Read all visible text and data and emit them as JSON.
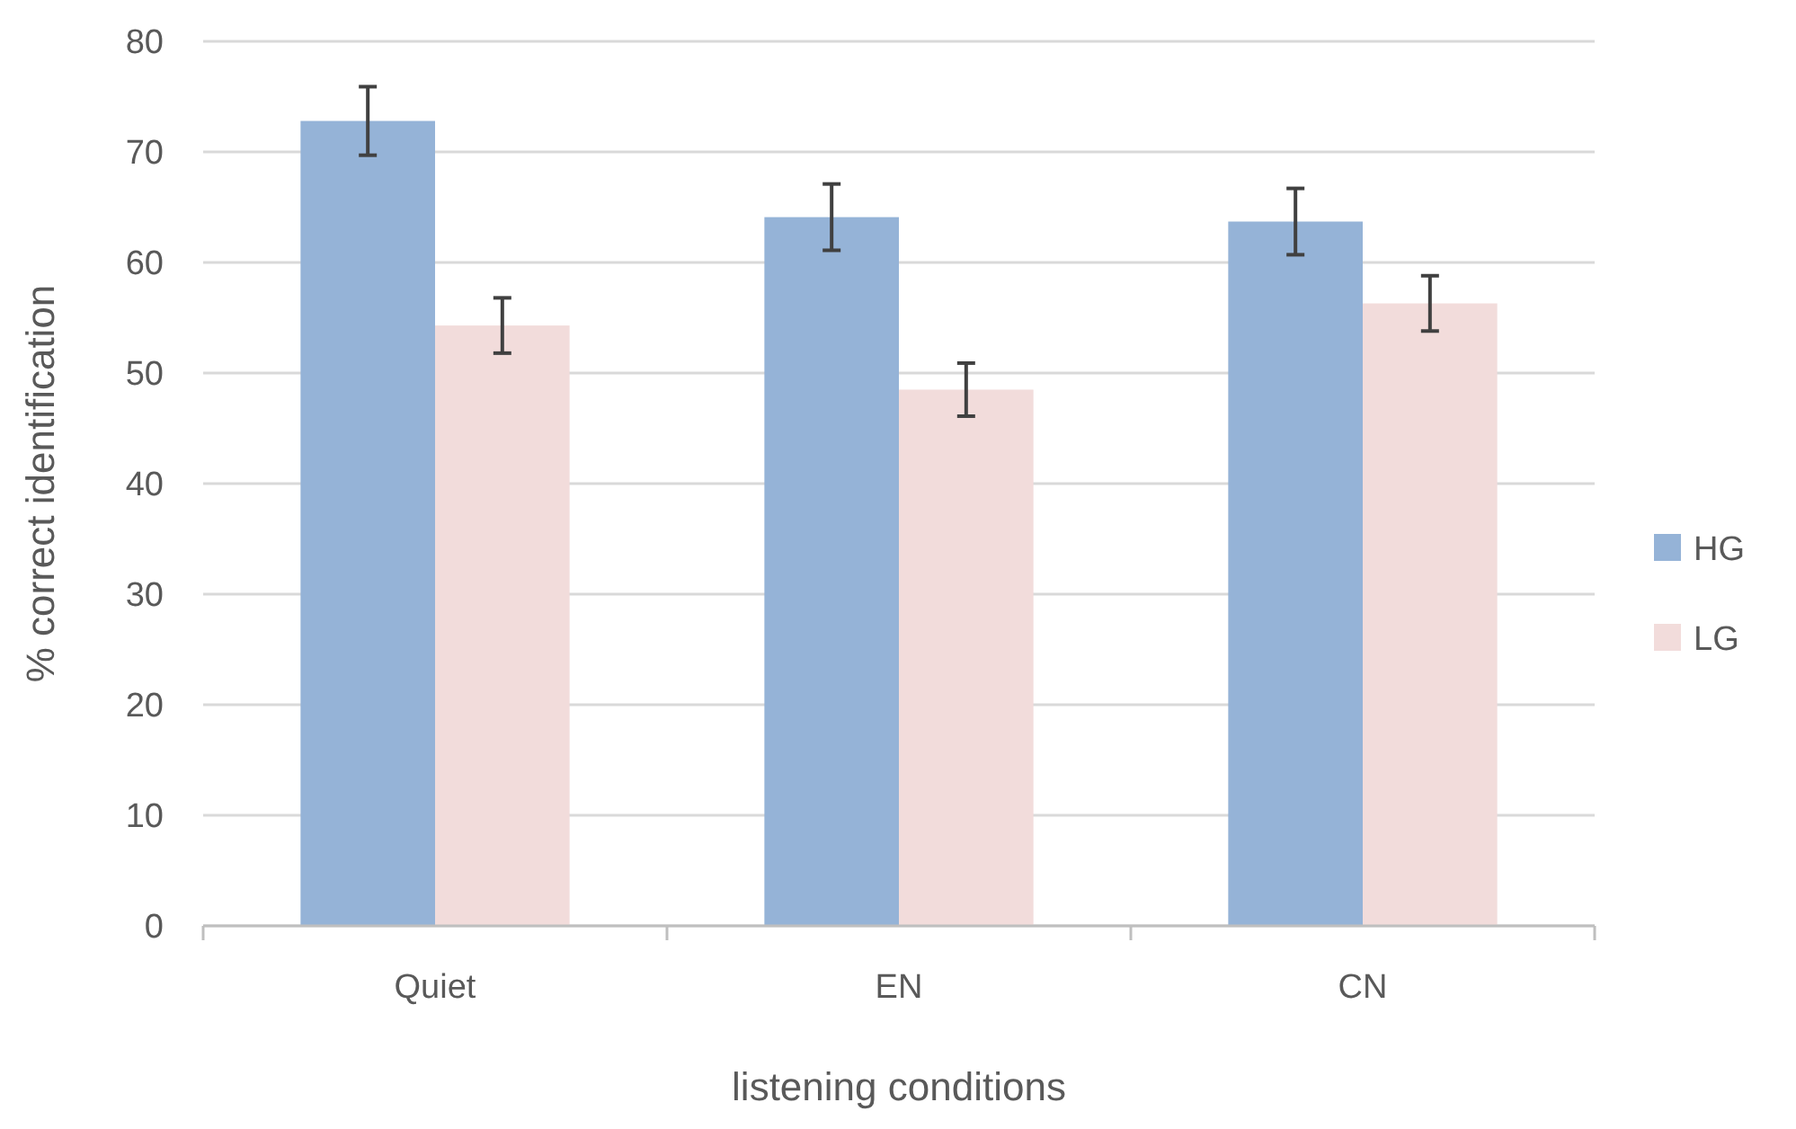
{
  "chart_data": {
    "type": "bar",
    "xlabel": "listening conditions",
    "ylabel": "% correct identification",
    "categories": [
      "Quiet",
      "EN",
      "CN"
    ],
    "series": [
      {
        "name": "HG",
        "color": "#95b3d7",
        "values": [
          72.8,
          64.1,
          63.7
        ],
        "errors": [
          3.1,
          3,
          3
        ]
      },
      {
        "name": "LG",
        "color": "#f2dcdb",
        "values": [
          54.3,
          48.5,
          56.3
        ],
        "errors": [
          2.5,
          2.4,
          2.5
        ]
      }
    ],
    "ylim": [
      0,
      80
    ],
    "yticks": [
      0,
      10,
      20,
      30,
      40,
      50,
      60,
      70,
      80
    ],
    "grid": "y",
    "legend": "right"
  }
}
